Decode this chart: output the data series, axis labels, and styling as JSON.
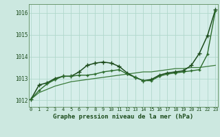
{
  "title": "Graphe pression niveau de la mer (hPa)",
  "background_color": "#cce8e0",
  "plot_bg_color": "#d6eeea",
  "grid_color": "#b0d8cc",
  "x_ticks": [
    0,
    1,
    2,
    3,
    4,
    5,
    6,
    7,
    8,
    9,
    10,
    11,
    12,
    13,
    14,
    15,
    16,
    17,
    18,
    19,
    20,
    21,
    22,
    23
  ],
  "ylim": [
    1011.7,
    1016.4
  ],
  "yticks": [
    1012,
    1013,
    1014,
    1015,
    1016
  ],
  "series": [
    {
      "data": [
        1012.05,
        1012.35,
        1012.5,
        1012.65,
        1012.75,
        1012.85,
        1012.9,
        1012.95,
        1013.0,
        1013.05,
        1013.1,
        1013.15,
        1013.2,
        1013.25,
        1013.3,
        1013.3,
        1013.35,
        1013.4,
        1013.45,
        1013.45,
        1013.5,
        1013.5,
        1013.55,
        1013.6
      ],
      "color": "#3a7a3a",
      "linewidth": 0.9,
      "marker": null,
      "markersize": 0
    },
    {
      "data": [
        1012.05,
        1012.7,
        1012.8,
        1013.0,
        1013.1,
        1013.1,
        1013.3,
        1013.6,
        1013.7,
        1013.75,
        1013.7,
        1013.55,
        1013.25,
        1013.05,
        1012.9,
        1012.95,
        1013.15,
        1013.25,
        1013.3,
        1013.35,
        1013.6,
        1014.15,
        1014.95,
        1016.15
      ],
      "color": "#1a4a1a",
      "linewidth": 1.1,
      "marker": "+",
      "markersize": 4.5
    },
    {
      "data": [
        1012.05,
        1012.45,
        1012.75,
        1012.95,
        1013.1,
        1013.1,
        1013.15,
        1013.15,
        1013.2,
        1013.3,
        1013.35,
        1013.4,
        1013.2,
        1013.05,
        1012.9,
        1012.9,
        1013.1,
        1013.2,
        1013.25,
        1013.3,
        1013.35,
        1013.4,
        1014.1,
        1016.1
      ],
      "color": "#2a6a2a",
      "linewidth": 1.0,
      "marker": "+",
      "markersize": 3.5
    }
  ]
}
